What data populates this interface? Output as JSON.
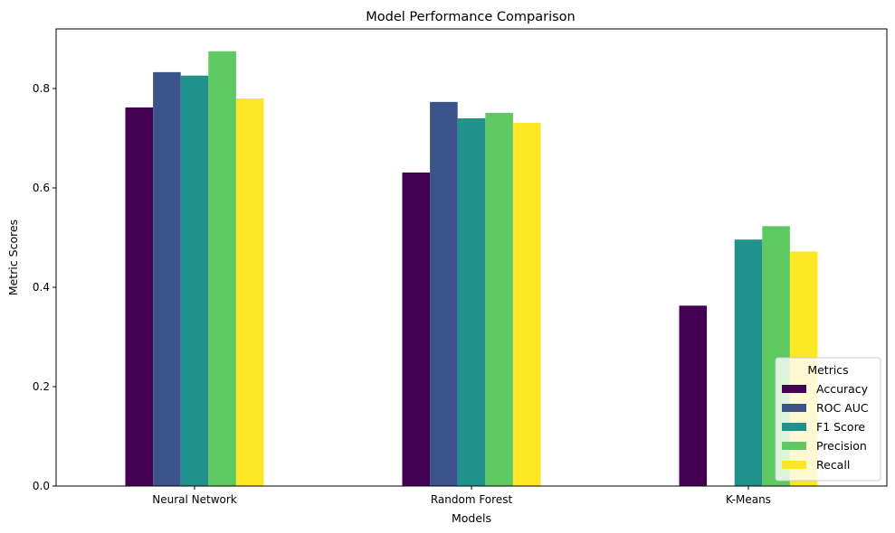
{
  "chart_data": {
    "type": "bar",
    "title": "Model Performance Comparison",
    "xlabel": "Models",
    "ylabel": "Metric Scores",
    "categories": [
      "Neural Network",
      "Random Forest",
      "K-Means"
    ],
    "series": [
      {
        "name": "Accuracy",
        "color": "#440154",
        "values": [
          0.762,
          0.631,
          0.363
        ]
      },
      {
        "name": "ROC AUC",
        "color": "#3b528b",
        "values": [
          0.833,
          0.773,
          null
        ]
      },
      {
        "name": "F1 Score",
        "color": "#21918c",
        "values": [
          0.826,
          0.74,
          0.496
        ]
      },
      {
        "name": "Precision",
        "color": "#5ec962",
        "values": [
          0.875,
          0.751,
          0.523
        ]
      },
      {
        "name": "Recall",
        "color": "#fde725",
        "values": [
          0.78,
          0.731,
          0.472
        ]
      }
    ],
    "ylim": [
      0,
      0.92
    ],
    "yticks": [
      "0.0",
      "0.2",
      "0.4",
      "0.6",
      "0.8"
    ],
    "grid": false,
    "legend": {
      "title": "Metrics",
      "placement": "lower-right"
    }
  }
}
